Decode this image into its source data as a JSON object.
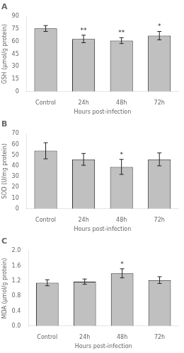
{
  "chart_data": [
    {
      "type": "bar",
      "title": "A",
      "xlabel": "Hours post-infection",
      "ylabel": "GSH (μmol/g protein)",
      "categories": [
        "Control",
        "24h",
        "48h",
        "72h"
      ],
      "values": [
        75.5,
        63.0,
        61.0,
        67.0
      ],
      "errors": [
        3.5,
        4.5,
        3.5,
        5.0
      ],
      "significance": [
        null,
        "**",
        "**",
        "*"
      ],
      "color": "#c0c0c0",
      "ylim": [
        0,
        90
      ],
      "yticks": [
        0,
        15,
        30,
        45,
        60,
        75,
        90
      ],
      "grid": false
    },
    {
      "type": "bar",
      "title": "B",
      "xlabel": "Hours post-infection",
      "ylabel": "SOD (U/mg protein)",
      "categories": [
        "Control",
        "24h",
        "48h",
        "72h"
      ],
      "values": [
        54.0,
        46.0,
        39.0,
        46.0
      ],
      "errors": [
        7.5,
        5.5,
        7.0,
        6.0
      ],
      "significance": [
        null,
        null,
        "*",
        null
      ],
      "color": "#c0c0c0",
      "ylim": [
        0,
        70
      ],
      "yticks": [
        0,
        10,
        20,
        30,
        40,
        50,
        60,
        70
      ],
      "grid": false
    },
    {
      "type": "bar",
      "title": "C",
      "xlabel": "Hours post-infection",
      "ylabel": "MDA (μmol/g protein)",
      "categories": [
        "Control",
        "24h",
        "48h",
        "72h"
      ],
      "values": [
        1.15,
        1.18,
        1.4,
        1.22
      ],
      "errors": [
        0.08,
        0.07,
        0.12,
        0.09
      ],
      "significance": [
        null,
        null,
        "*",
        null
      ],
      "color": "#c0c0c0",
      "ylim": [
        0,
        2.0
      ],
      "yticks": [
        {
          "value": 0,
          "label": "0.0"
        },
        0.4,
        0.8,
        1.2,
        1.6,
        {
          "value": 2.0,
          "label": "2.0"
        }
      ],
      "grid": false
    }
  ]
}
